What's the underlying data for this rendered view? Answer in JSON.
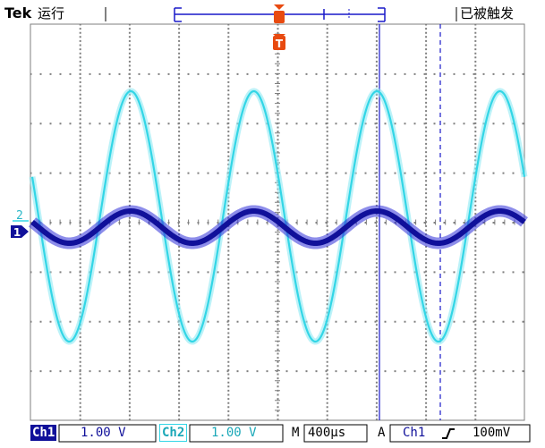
{
  "header": {
    "brand": "Tek",
    "run_state": "运行",
    "trigger_state": "已被触发",
    "trigger_marker": "T"
  },
  "markers": {
    "ch2_ground": "2",
    "ch1_ground": "1"
  },
  "status_bar": {
    "ch1_label": "Ch1",
    "ch1_scale": "1.00 V",
    "ch2_label": "Ch2",
    "ch2_scale": "1.00 V",
    "timebase_label": "M",
    "timebase": "400µs",
    "trigger_label": "A",
    "trigger_source": "Ch1",
    "trigger_slope_icon": "rising-edge-icon",
    "trigger_level": "100mV"
  },
  "colors": {
    "ch1": "#1818c8",
    "ch2": "#33d6e6",
    "grid": "#7f7f7f",
    "trigger": "#e84a10"
  }
}
